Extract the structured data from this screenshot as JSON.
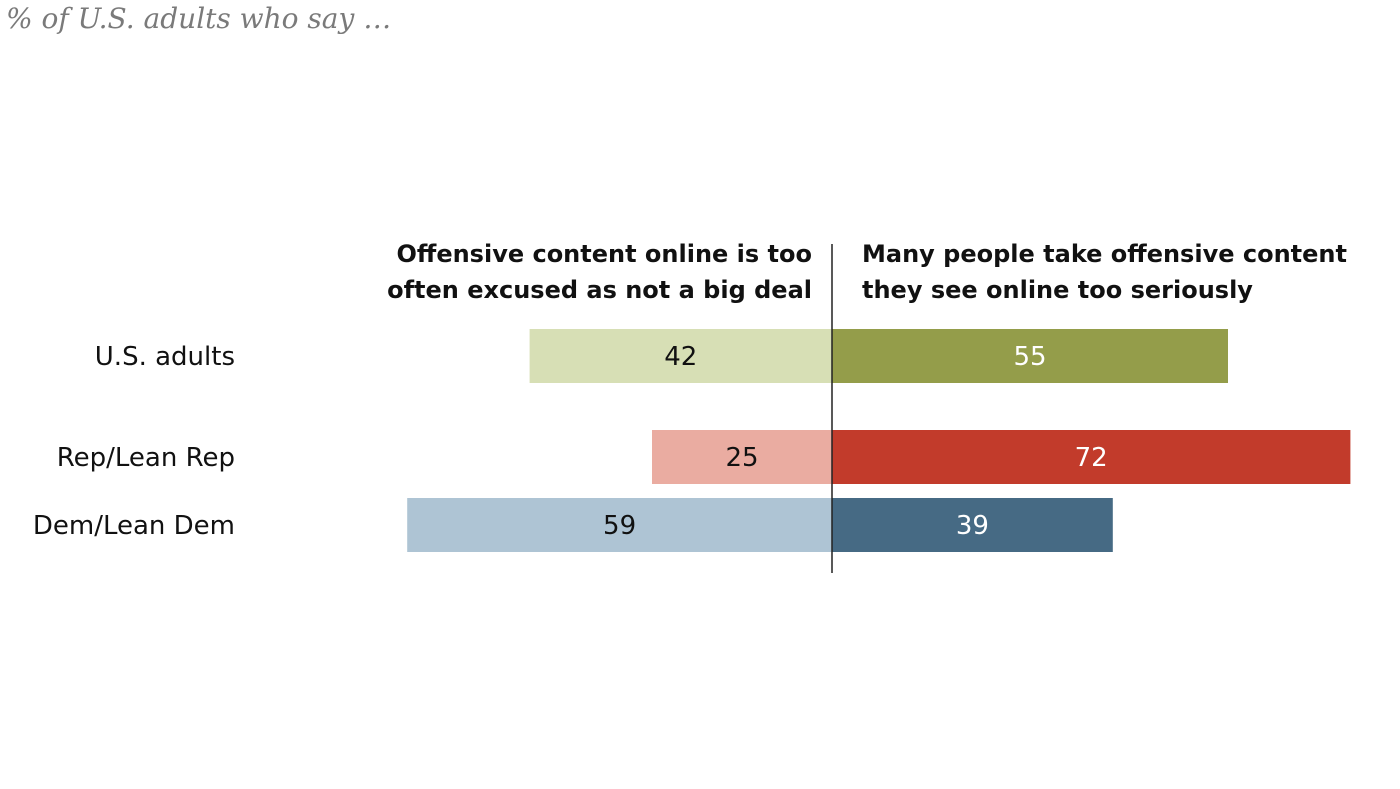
{
  "subtitle": "% of U.S. adults who say …",
  "chart_data": {
    "type": "bar",
    "orientation": "horizontal-diverging",
    "title": "",
    "subtitle": "% of U.S. adults who say …",
    "categories": [
      "U.S. adults",
      "Rep/Lean Rep",
      "Dem/Lean Dem"
    ],
    "series": [
      {
        "name": "Offensive content online is too often excused as not a big deal",
        "label_lines": [
          "Offensive content online is too",
          "often excused as not a big deal"
        ],
        "side": "left",
        "values": [
          42,
          25,
          59
        ],
        "colors": [
          "#d7dfb5",
          "#eaaca1",
          "#aec4d4"
        ]
      },
      {
        "name": "Many people take offensive content they see online too seriously",
        "label_lines": [
          "Many people take offensive content",
          "they see online too seriously"
        ],
        "side": "right",
        "values": [
          55,
          72,
          39
        ],
        "colors": [
          "#949d4a",
          "#c23b2b",
          "#466a84"
        ]
      }
    ],
    "legend": "column headers above bars",
    "grid": false,
    "xlim": [
      0,
      72
    ]
  }
}
